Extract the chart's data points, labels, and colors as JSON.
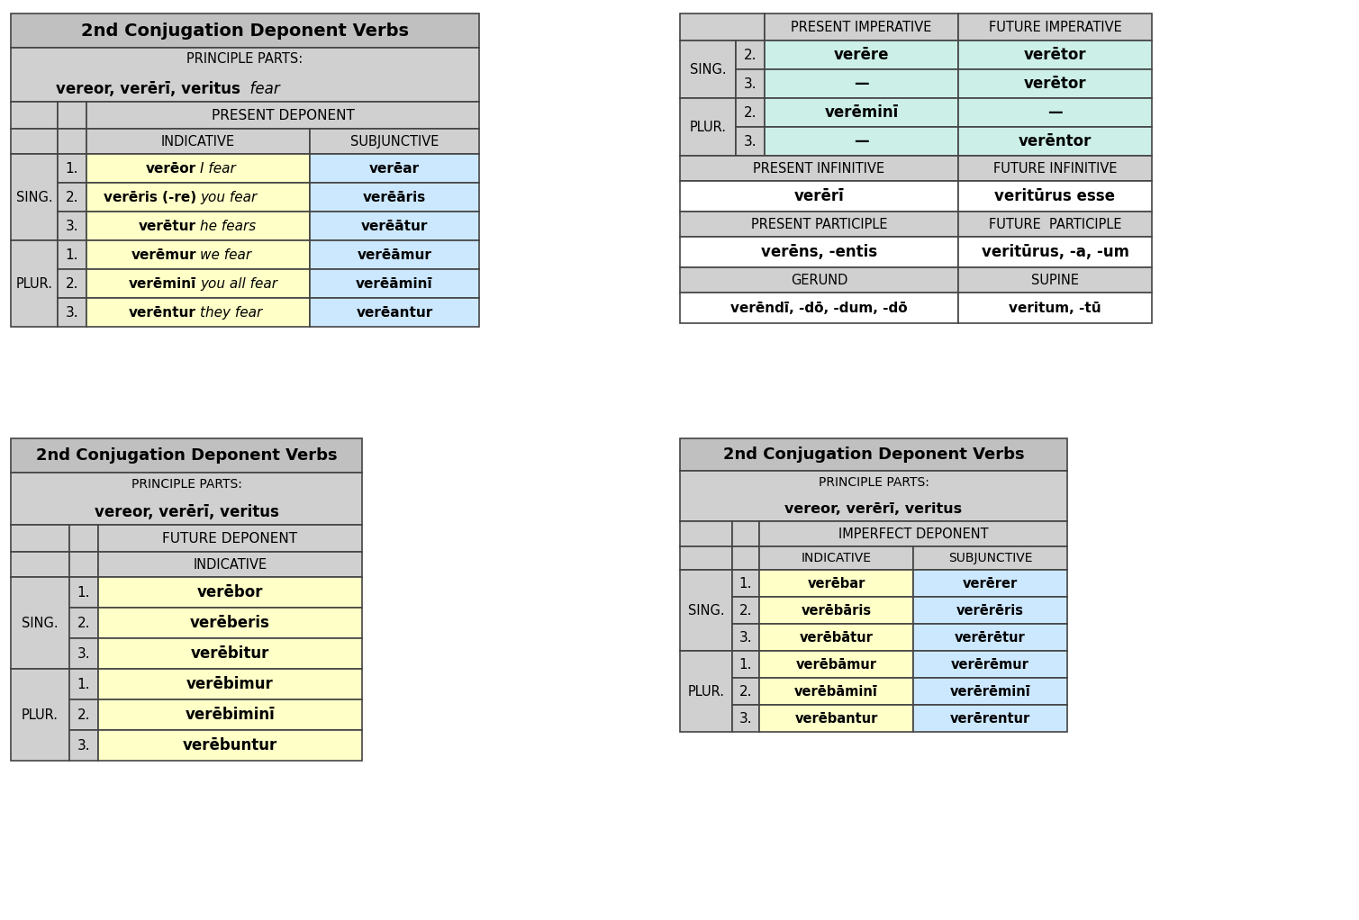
{
  "bg": "#ffffff",
  "gray_header": "#c0c0c0",
  "gray_light": "#d0d0d0",
  "yellow": "#ffffc8",
  "blue_light": "#cce8ff",
  "green_light": "#ccf0e8",
  "white": "#ffffff",
  "table1": {
    "indicative": [
      "verēor  I fear",
      "verēris (-re)  you fear",
      "verētur  he fears",
      "verēmur  we fear",
      "verēminī  you all fear",
      "verēntur  they fear"
    ],
    "subjunctive": [
      "verēar",
      "verēāris",
      "verēātur",
      "verēāmur",
      "verēāminī",
      "verēantur"
    ]
  },
  "table2": {
    "indicative": [
      "verēbor",
      "verēberis",
      "verēbitur",
      "verēbimur",
      "verēbiminī",
      "verēbuntur"
    ]
  },
  "table3": {
    "rows_imp": [
      {
        "person": "SING.",
        "num": "2.",
        "pres": "verēre",
        "fut": "verētor"
      },
      {
        "person": "",
        "num": "3.",
        "pres": "—",
        "fut": "verētor"
      },
      {
        "person": "PLUR.",
        "num": "2.",
        "pres": "verēminī",
        "fut": "—"
      },
      {
        "person": "",
        "num": "3.",
        "pres": "—",
        "fut": "verēntor"
      }
    ],
    "pres_inf": "verērī",
    "fut_inf": "veritūrus esse",
    "pres_part": "verēns, -entis",
    "fut_part": "veritūrus, -a, -um",
    "gerund": "verēndī, -dō, -dum, -dō",
    "supine": "veritum, -tū"
  },
  "table4": {
    "indicative": [
      "verēbar",
      "verēbāris",
      "verēbātur",
      "verēbāmur",
      "verēbāminī",
      "verēbantur"
    ],
    "subjunctive": [
      "verērer",
      "verērēris",
      "verērētur",
      "verērēmur",
      "verērēminī",
      "verērentur"
    ]
  }
}
